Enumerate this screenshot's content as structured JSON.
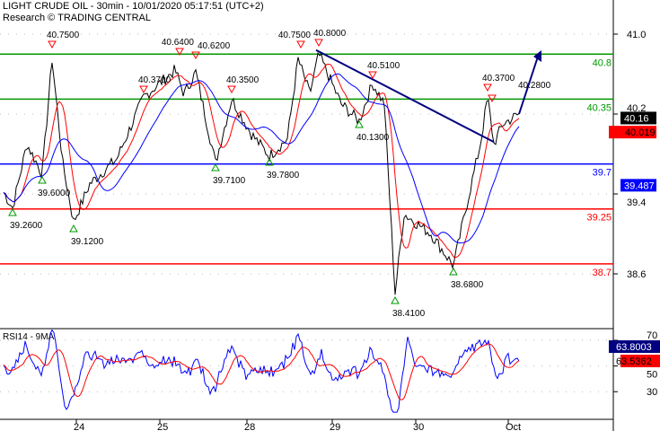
{
  "header": {
    "title": "LIGHT CRUDE OIL - 30min - 10/01/2020 05:17:51 (UTC+2)",
    "subtitle": "Research © TRADING CENTRAL"
  },
  "chart_data": {
    "type": "line",
    "price_axis": {
      "ticks": [
        "41.0",
        "40.2",
        "39.4",
        "38.6"
      ],
      "range": [
        38.2,
        41.3
      ]
    },
    "x_ticks": [
      "24",
      "25",
      "28",
      "29",
      "30",
      "Oct"
    ],
    "levels": [
      {
        "value": 40.8,
        "label": "40.8",
        "color": "#009900"
      },
      {
        "value": 40.35,
        "label": "40.35",
        "color": "#009900"
      },
      {
        "value": 39.7,
        "label": "39.7",
        "color": "#0000ff"
      },
      {
        "value": 39.25,
        "label": "39.25",
        "color": "#ff0000"
      },
      {
        "value": 38.7,
        "label": "38.7",
        "color": "#ff0000"
      }
    ],
    "price_tags": [
      {
        "label": "40.16",
        "value": 40.16,
        "bg": "#000000",
        "fg": "#ffffff"
      },
      {
        "label": "40.019",
        "value": 40.019,
        "bg": "#ff0000",
        "fg": "#000000"
      },
      {
        "label": "39.487",
        "value": 39.487,
        "bg": "#0000ff",
        "fg": "#ffffff"
      }
    ],
    "highs": [
      "40.7500",
      "40.3700",
      "40.6400",
      "40.6200",
      "40.3500",
      "40.7500",
      "40.8000",
      "40.5100",
      "40.3700",
      "40.2800"
    ],
    "lows": [
      "39.2600",
      "39.6000",
      "39.1200",
      "39.7100",
      "39.7800",
      "40.1300",
      "38.4100",
      "38.6800"
    ],
    "rsi": {
      "label": "RSI14 - 9MA",
      "ticks": [
        "70",
        "50",
        "30"
      ],
      "tags": [
        {
          "label": "63.8003",
          "bg": "#000080",
          "fg": "#ffffff"
        },
        {
          "label": "63.5362",
          "bg": "#ff0000",
          "fg": "#000000"
        }
      ]
    },
    "series_colors": {
      "price": "#000000",
      "ma_fast": "#ff0000",
      "ma_slow": "#0000ff",
      "trendline": "#000080"
    }
  }
}
